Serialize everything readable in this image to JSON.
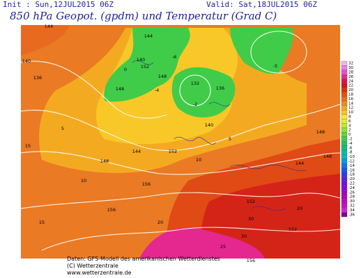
{
  "header": {
    "init": "Init : Sun,12JUL2015 06Z",
    "valid": "Valid: Sat,18JUL2015 06Z",
    "title": "850 hPa Geopot. (gpdm) und Temperatur (Grad C)"
  },
  "footer": {
    "source": "Daten: GFS-Modell des amerikanischen Wetterdienstes",
    "copyright": "(C) Wetterzentrale",
    "url": "www.wetterzentrale.de"
  },
  "colorbar": {
    "labels": [
      32,
      30,
      28,
      26,
      24,
      22,
      20,
      18,
      16,
      14,
      12,
      10,
      8,
      6,
      4,
      2,
      0,
      -2,
      -4,
      -6,
      -8,
      -10,
      -12,
      -14,
      -16,
      -18,
      -20,
      -22,
      -24,
      -26,
      -28,
      -30,
      -32,
      -34,
      -36
    ],
    "colors": [
      "#f4b0f4",
      "#ec80ec",
      "#e850d0",
      "#e42890",
      "#e01050",
      "#d41414",
      "#e03008",
      "#e85010",
      "#ee6e18",
      "#f28c1c",
      "#f4aa20",
      "#f8c828",
      "#f8e830",
      "#e0f030",
      "#bcec30",
      "#90e430",
      "#60d838",
      "#40cc48",
      "#24c064",
      "#10bc84",
      "#08bca4",
      "#08b8c4",
      "#0898e0",
      "#0878f0",
      "#1058f0",
      "#3038f0",
      "#5020ec",
      "#6c10e4",
      "#8408d8",
      "#9608c8",
      "#a808b8",
      "#b808c0",
      "#c810c8",
      "#d820d8",
      "#7800a0"
    ]
  },
  "map": {
    "labels": [
      144,
      140,
      136,
      144,
      140,
      148,
      152,
      148,
      132,
      136,
      140,
      144,
      148,
      152,
      144,
      148,
      156,
      152,
      148,
      156,
      152,
      156,
      -6,
      -5,
      0,
      5,
      10,
      15,
      20,
      25,
      30,
      15,
      -4,
      -2,
      5,
      10,
      20,
      30
    ]
  }
}
